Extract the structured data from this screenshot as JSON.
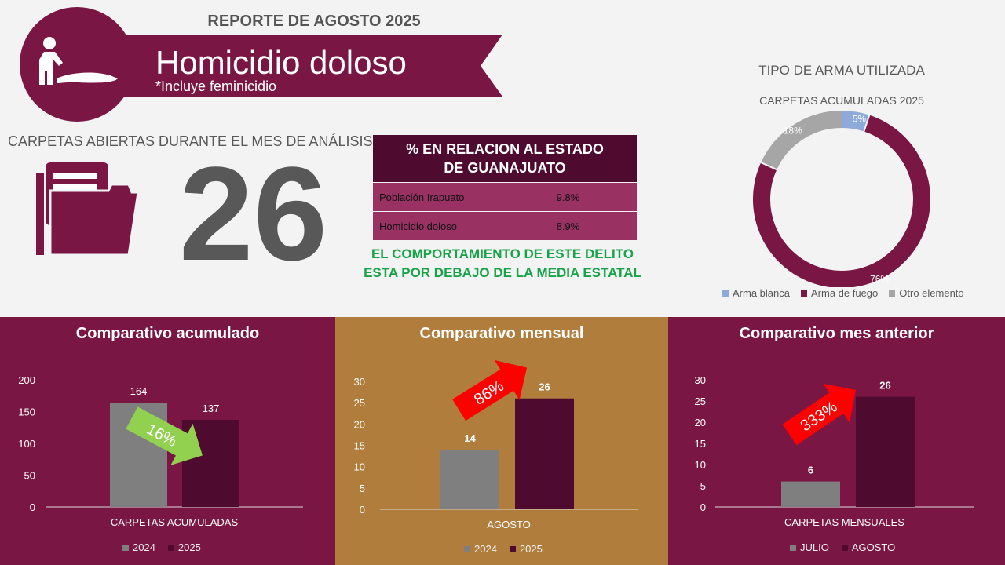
{
  "header": {
    "report_title": "REPORTE DE  AGOSTO 2025",
    "crime_title": "Homicidio doloso",
    "crime_note": "*Incluye feminicidio",
    "icon": "crime-scene-icon"
  },
  "monthly_cases": {
    "label": "CARPETAS ABIERTAS DURANTE EL MES DE ANÁLISIS",
    "value": "26",
    "icon": "folder-icon"
  },
  "state_relation": {
    "heading_line1": "% EN RELACION AL ESTADO",
    "heading_line2": "DE GUANAJUATO",
    "rows": [
      {
        "label": "Población Irapuato",
        "value": "9.8%"
      },
      {
        "label": "Homicidio doloso",
        "value": "8.9%"
      }
    ],
    "behavior_line1": "EL COMPORTAMIENTO DE ESTE DELITO",
    "behavior_line2": "ESTA POR DEBAJO DE LA MEDIA ESTATAL"
  },
  "colors": {
    "brand": "#7a1644",
    "dark": "#4e0a2f",
    "gold": "#b07d3c",
    "grey": "#7f7f7f",
    "green": "#17a347",
    "light_blue": "#8eaadb",
    "light_grey": "#a6a6a6"
  },
  "chart_data": [
    {
      "type": "pie",
      "variant": "donut",
      "title": "TIPO DE ARMA UTILIZADA",
      "subtitle": "CARPETAS ACUMULADAS 2025",
      "categories": [
        "Arma blanca",
        "Arma de fuego",
        "Otro elemento"
      ],
      "values": [
        5,
        76,
        18
      ],
      "labels": [
        "5%",
        "76%",
        "18%"
      ],
      "colors": [
        "#8eaadb",
        "#7a1644",
        "#a6a6a6"
      ],
      "legend": "bottom"
    },
    {
      "type": "bar",
      "title": "Comparativo acumulado",
      "categories": [
        "CARPETAS ACUMULADAS"
      ],
      "series": [
        {
          "name": "2024",
          "values": [
            164
          ],
          "color": "#7f7f7f"
        },
        {
          "name": "2025",
          "values": [
            137
          ],
          "color": "#4e0a2f"
        }
      ],
      "ylim": [
        0,
        200
      ],
      "yticks": [
        "0",
        "50",
        "100",
        "150",
        "200"
      ],
      "arrow": {
        "label": "16%",
        "direction": "down",
        "color": "#92d050"
      },
      "legend": "bottom"
    },
    {
      "type": "bar",
      "title": "Comparativo mensual",
      "categories": [
        "AGOSTO"
      ],
      "series": [
        {
          "name": "2024",
          "values": [
            14
          ],
          "color": "#7f7f7f"
        },
        {
          "name": "2025",
          "values": [
            26
          ],
          "color": "#4e0a2f"
        }
      ],
      "ylim": [
        0,
        30
      ],
      "yticks": [
        "0",
        "5",
        "10",
        "15",
        "20",
        "25",
        "30"
      ],
      "arrow": {
        "label": "86%",
        "direction": "up",
        "color": "#ff0000"
      },
      "legend": "bottom"
    },
    {
      "type": "bar",
      "title": "Comparativo mes anterior",
      "categories": [
        "CARPETAS MENSUALES"
      ],
      "series": [
        {
          "name": "JULIO",
          "values": [
            6
          ],
          "color": "#7f7f7f"
        },
        {
          "name": "AGOSTO",
          "values": [
            26
          ],
          "color": "#4e0a2f"
        }
      ],
      "ylim": [
        0,
        30
      ],
      "yticks": [
        "0",
        "5",
        "10",
        "15",
        "20",
        "25",
        "30"
      ],
      "arrow": {
        "label": "333%",
        "direction": "up",
        "color": "#ff0000"
      },
      "legend": "bottom"
    }
  ]
}
